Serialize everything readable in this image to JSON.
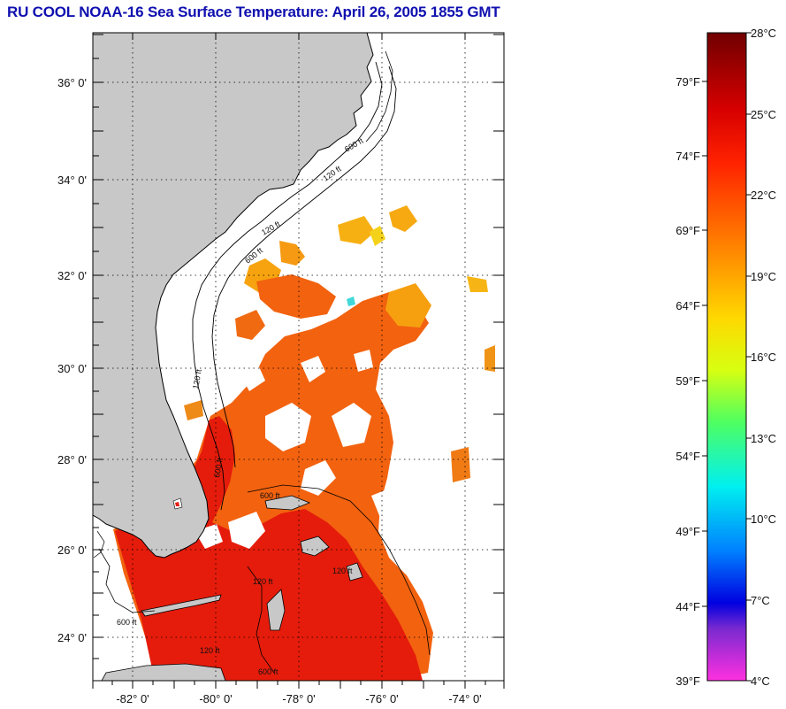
{
  "title": "RU COOL  NOAA-16  Sea Surface Temperature:  April 26, 2005 1855 GMT",
  "map": {
    "lat_labels": [
      "36° 0'",
      "34° 0'",
      "32° 0'",
      "30° 0'",
      "28° 0'",
      "26° 0'",
      "24° 0'"
    ],
    "lon_labels": [
      "-82° 0'",
      "-80° 0'",
      "-78° 0'",
      "-76° 0'",
      "-74° 0'"
    ],
    "contour_labels": [
      "600 ft",
      "120 ft",
      "120 ft",
      "600 ft",
      "120 ft",
      "600 ft",
      "120 ft",
      "600 ft",
      "120 ft",
      "600 ft",
      "120 ft",
      "600 ft"
    ]
  },
  "colorbar": {
    "fahrenheit_labels": [
      "79°F",
      "74°F",
      "69°F",
      "64°F",
      "59°F",
      "54°F",
      "49°F",
      "44°F",
      "39°F"
    ],
    "celsius_labels": [
      "28°C",
      "25°C",
      "22°C",
      "19°C",
      "16°C",
      "13°C",
      "10°C",
      "7°C",
      "4°C"
    ]
  },
  "colors": {
    "title": "#1010b0",
    "land": "#c8c8c8",
    "sst_warm": "#e81a0a",
    "sst_orange": "#f05a0e",
    "sst_yellow": "#f7a60f"
  }
}
